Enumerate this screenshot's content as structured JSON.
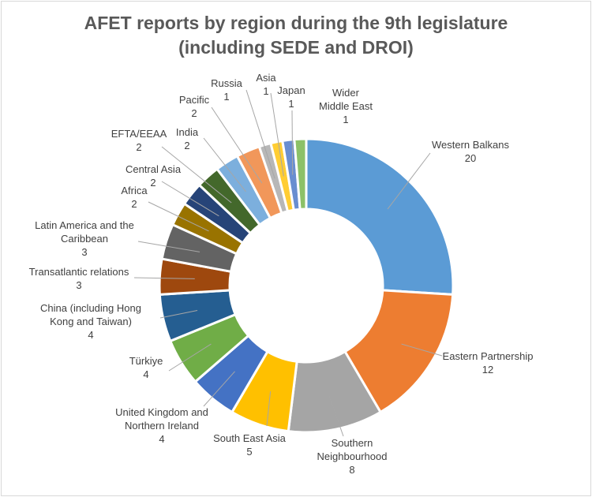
{
  "chart_data": {
    "type": "pie",
    "title_line1": "AFET reports by region during the 9th legislature",
    "title_line2": "(including SEDE and DROI)",
    "slices": [
      {
        "label": "Western Balkans",
        "value": 20,
        "color": "#5b9bd5"
      },
      {
        "label": "Eastern Partnership",
        "value": 12,
        "color": "#ed7d31"
      },
      {
        "label": "Southern Neighbourhood",
        "value": 8,
        "color": "#a5a5a5"
      },
      {
        "label": "South East Asia",
        "value": 5,
        "color": "#ffc000"
      },
      {
        "label": "United Kingdom and Northern Ireland",
        "value": 4,
        "color": "#4472c4"
      },
      {
        "label": "Türkiye",
        "value": 4,
        "color": "#70ad47"
      },
      {
        "label": "China (including Hong Kong and Taiwan)",
        "value": 4,
        "color": "#255e91"
      },
      {
        "label": "Transatlantic relations",
        "value": 3,
        "color": "#9e480e"
      },
      {
        "label": "Latin America and the Caribbean",
        "value": 3,
        "color": "#636363"
      },
      {
        "label": "Africa",
        "value": 2,
        "color": "#997300"
      },
      {
        "label": "Central Asia",
        "value": 2,
        "color": "#264478"
      },
      {
        "label": "EFTA/EEAA",
        "value": 2,
        "color": "#43682b"
      },
      {
        "label": "India",
        "value": 2,
        "color": "#7cafdd"
      },
      {
        "label": "Pacific",
        "value": 2,
        "color": "#f1975a"
      },
      {
        "label": "Russia",
        "value": 1,
        "color": "#b7b7b7"
      },
      {
        "label": "Asia",
        "value": 1,
        "color": "#ffcd33"
      },
      {
        "label": "Japan",
        "value": 1,
        "color": "#698ed0"
      },
      {
        "label": "Wider Middle East",
        "value": 1,
        "color": "#8cc168"
      }
    ]
  }
}
